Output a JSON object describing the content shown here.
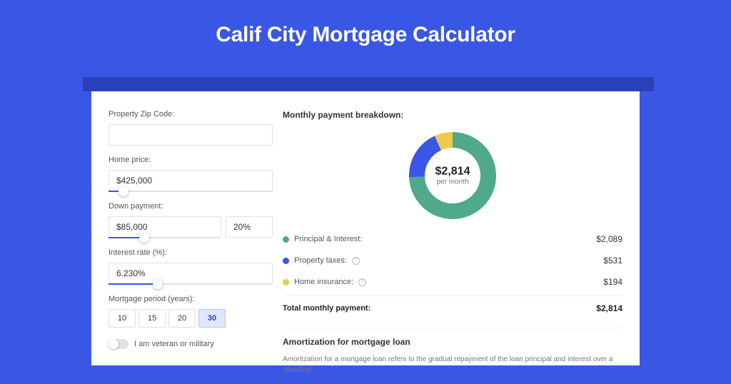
{
  "page": {
    "title": "Calif City Mortgage Calculator",
    "background_color": "#3957e4",
    "shadow_band_color": "#2941b8",
    "card_background": "#ffffff"
  },
  "form": {
    "zip": {
      "label": "Property Zip Code:",
      "value": ""
    },
    "home_price": {
      "label": "Home price:",
      "value": "$425,000",
      "slider_pct": 9
    },
    "down_payment": {
      "label": "Down payment:",
      "value": "$85,000",
      "percent": "20%",
      "slider_pct": 20
    },
    "interest_rate": {
      "label": "Interest rate (%):",
      "value": "6.230%",
      "slider_pct": 30
    },
    "period": {
      "label": "Mortgage period (years):",
      "options": [
        "10",
        "15",
        "20",
        "30"
      ],
      "selected_index": 3
    },
    "veteran": {
      "label": "I am veteran or military",
      "checked": false
    }
  },
  "breakdown": {
    "title": "Monthly payment breakdown:",
    "center_amount": "$2,814",
    "center_sub": "per month",
    "donut": {
      "radius": 50,
      "stroke_width": 22,
      "background": "#ffffff",
      "segments": [
        {
          "key": "principal_interest",
          "value": 2089,
          "color": "#4fa98a"
        },
        {
          "key": "property_taxes",
          "value": 531,
          "color": "#3957e4"
        },
        {
          "key": "home_insurance",
          "value": 194,
          "color": "#efc94c"
        }
      ]
    },
    "items": [
      {
        "label": "Principal & Interest:",
        "value": "$2,089",
        "dot_color": "#4fa98a",
        "info": false
      },
      {
        "label": "Property taxes:",
        "value": "$531",
        "dot_color": "#3957e4",
        "info": true
      },
      {
        "label": "Home insurance:",
        "value": "$194",
        "dot_color": "#efc94c",
        "info": true
      }
    ],
    "total": {
      "label": "Total monthly payment:",
      "value": "$2,814"
    }
  },
  "amortization": {
    "title": "Amortization for mortgage loan",
    "text": "Amortization for a mortgage loan refers to the gradual repayment of the loan principal and interest over a specified"
  },
  "styles": {
    "label_fontsize": 11,
    "input_border": "#e0e0e0",
    "slider_fill": "#3957e4",
    "period_active_bg": "#dfe6fb"
  }
}
